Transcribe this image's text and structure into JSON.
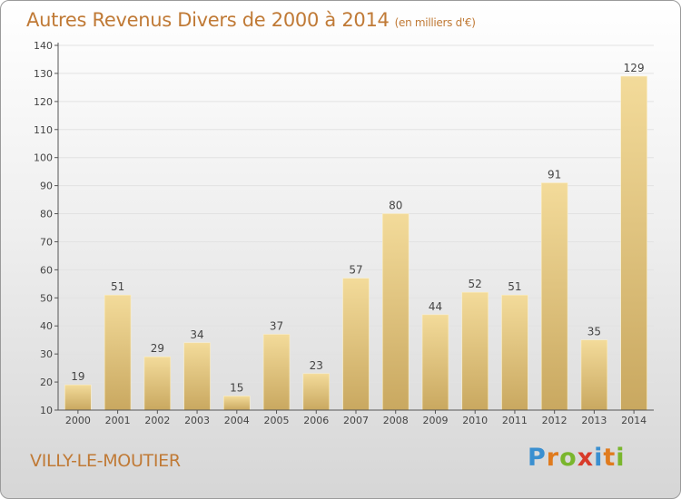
{
  "header": {
    "title": "Autres Revenus Divers de 2000 à 2014",
    "subtitle": "(en milliers d'€)"
  },
  "footer": {
    "commune": "VILLY-LE-MOUTIER",
    "brand_letters": [
      "P",
      "r",
      "o",
      "x",
      "i",
      "t",
      "i"
    ],
    "brand_colors": [
      "#3a8fd0",
      "#e07b1e",
      "#7ab62d",
      "#d83b2a",
      "#3a8fd0",
      "#e07b1e",
      "#7ab62d"
    ]
  },
  "colors": {
    "title": "#c07a36",
    "bar_light": "#f3db9a",
    "bar_dark": "#c9a860",
    "axis": "#555555"
  },
  "chart_data": {
    "type": "bar",
    "title": "Autres Revenus Divers de 2000 à 2014",
    "subtitle": "(en milliers d'€)",
    "categories": [
      "2000",
      "2001",
      "2002",
      "2003",
      "2004",
      "2005",
      "2006",
      "2007",
      "2008",
      "2009",
      "2010",
      "2011",
      "2012",
      "2013",
      "2014"
    ],
    "values": [
      19,
      51,
      29,
      34,
      15,
      37,
      23,
      57,
      80,
      44,
      52,
      51,
      91,
      35,
      129
    ],
    "ylim": [
      10,
      140
    ],
    "yticks": [
      10,
      20,
      30,
      40,
      50,
      60,
      70,
      80,
      90,
      100,
      110,
      120,
      130,
      140
    ],
    "grid": true,
    "data_labels": true
  }
}
